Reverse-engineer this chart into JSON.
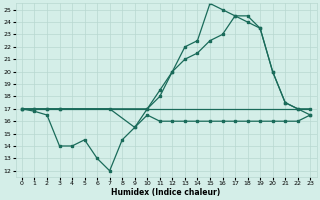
{
  "xlabel": "Humidex (Indice chaleur)",
  "bg_color": "#d4eee8",
  "line_color": "#1a6b5a",
  "grid_color": "#b8d8d0",
  "xlim": [
    -0.5,
    23.5
  ],
  "ylim": [
    11.5,
    25.5
  ],
  "xticks": [
    0,
    1,
    2,
    3,
    4,
    5,
    6,
    7,
    8,
    9,
    10,
    11,
    12,
    13,
    14,
    15,
    16,
    17,
    18,
    19,
    20,
    21,
    22,
    23
  ],
  "yticks": [
    12,
    13,
    14,
    15,
    16,
    17,
    18,
    19,
    20,
    21,
    22,
    23,
    24,
    25
  ],
  "line1_x": [
    0,
    1,
    2,
    3,
    4,
    5,
    6,
    7,
    8,
    9,
    10,
    11,
    12,
    13,
    14,
    15,
    16,
    17,
    18,
    19,
    20,
    21,
    22,
    23
  ],
  "line1_y": [
    17,
    16.8,
    16.5,
    14,
    14,
    14.5,
    13,
    12,
    14.5,
    15.5,
    16.5,
    16,
    16,
    16,
    16,
    16,
    16,
    16,
    16,
    16,
    16,
    16,
    16,
    16.5
  ],
  "line2_x": [
    0,
    1,
    2,
    3,
    4,
    5,
    6,
    7,
    8,
    9,
    10,
    11,
    12,
    13,
    14,
    15,
    16,
    17,
    18,
    19,
    20,
    21,
    22,
    23
  ],
  "line2_y": [
    17,
    17,
    17,
    17,
    17,
    17,
    17,
    17,
    17,
    17,
    17,
    17,
    17,
    17,
    17,
    17,
    17,
    17,
    17,
    17,
    17,
    17,
    17,
    17
  ],
  "line3_x": [
    0,
    1,
    2,
    3,
    7,
    9,
    10,
    11,
    12,
    13,
    14,
    15,
    16,
    17,
    18,
    19,
    20,
    21,
    22,
    23
  ],
  "line3_y": [
    17,
    17,
    17,
    17,
    17,
    15.5,
    17,
    18.5,
    20,
    22,
    22.5,
    25.5,
    25,
    24.5,
    24.5,
    23.5,
    20,
    17.5,
    17,
    17
  ],
  "line4_x": [
    0,
    1,
    2,
    3,
    10,
    11,
    12,
    13,
    14,
    15,
    16,
    17,
    18,
    19,
    20,
    21,
    22,
    23
  ],
  "line4_y": [
    17,
    17,
    17,
    17,
    17,
    18,
    20,
    21,
    21.5,
    22.5,
    23,
    24.5,
    24,
    23.5,
    20,
    17.5,
    17,
    16.5
  ]
}
